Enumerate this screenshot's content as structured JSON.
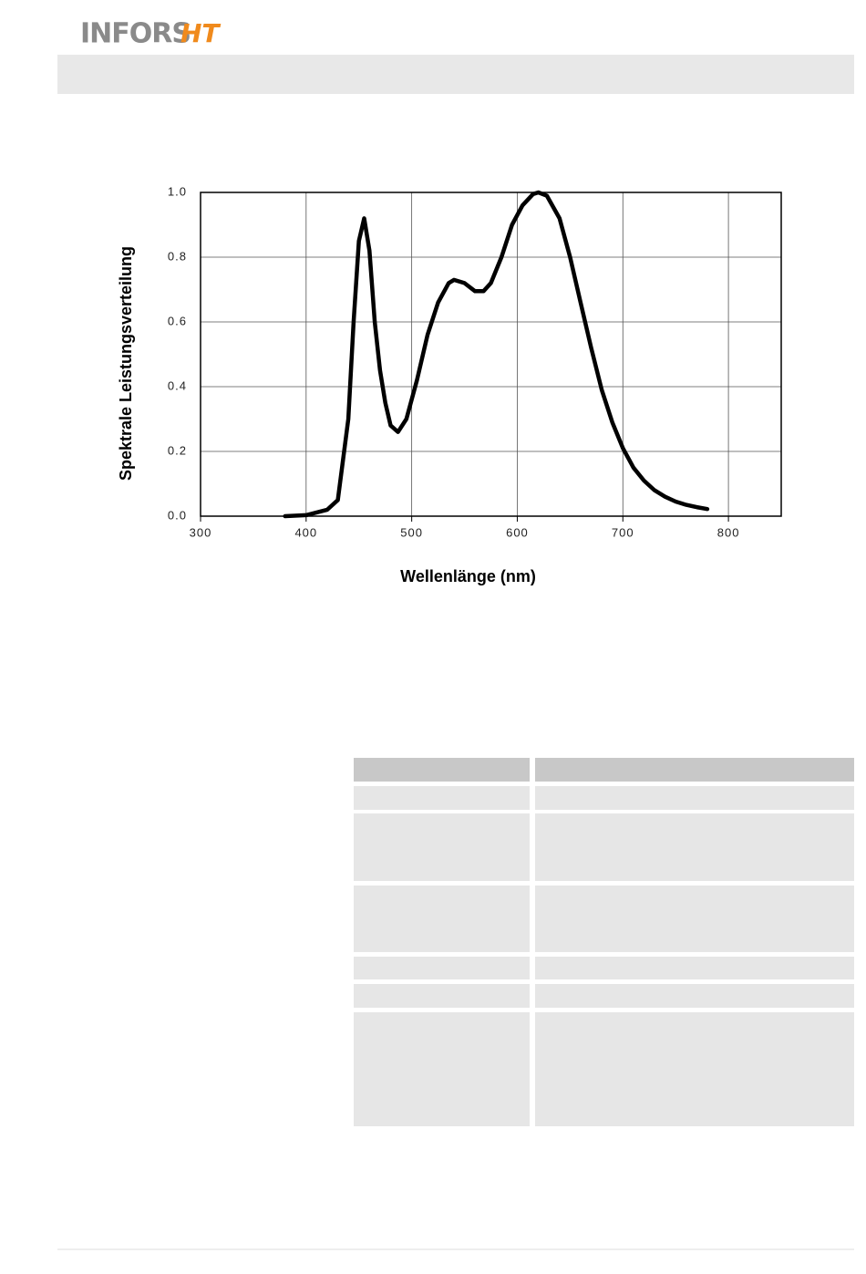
{
  "header": {
    "brand": "INFORS",
    "brand_mark": "HT"
  },
  "chart_data": {
    "type": "line",
    "x_label": "Wellenlänge (nm)",
    "y_label": "Spektrale Leistungsverteilung",
    "x": [
      380,
      400,
      420,
      430,
      440,
      445,
      450,
      455,
      460,
      465,
      470,
      475,
      480,
      487,
      495,
      505,
      515,
      525,
      535,
      540,
      550,
      560,
      568,
      575,
      585,
      595,
      605,
      615,
      620,
      628,
      640,
      650,
      660,
      670,
      680,
      690,
      700,
      710,
      720,
      730,
      740,
      750,
      760,
      770,
      780
    ],
    "series": [
      {
        "color": "#000000",
        "values": [
          0.0,
          0.003,
          0.02,
          0.05,
          0.3,
          0.6,
          0.85,
          0.92,
          0.82,
          0.6,
          0.45,
          0.35,
          0.28,
          0.26,
          0.3,
          0.42,
          0.56,
          0.66,
          0.72,
          0.73,
          0.72,
          0.695,
          0.695,
          0.72,
          0.8,
          0.9,
          0.96,
          0.995,
          1.0,
          0.99,
          0.92,
          0.8,
          0.66,
          0.52,
          0.39,
          0.29,
          0.21,
          0.15,
          0.11,
          0.08,
          0.06,
          0.045,
          0.035,
          0.028,
          0.022
        ]
      }
    ],
    "xlim": [
      300,
      850
    ],
    "ylim": [
      0,
      1
    ],
    "xticks": [
      300,
      400,
      500,
      600,
      700,
      800
    ],
    "yticks": [
      {
        "value": 0,
        "label": "0.0"
      },
      0.2,
      0.4,
      0.6,
      0.8,
      {
        "value": 1,
        "label": "1.0"
      }
    ],
    "grid": true
  }
}
